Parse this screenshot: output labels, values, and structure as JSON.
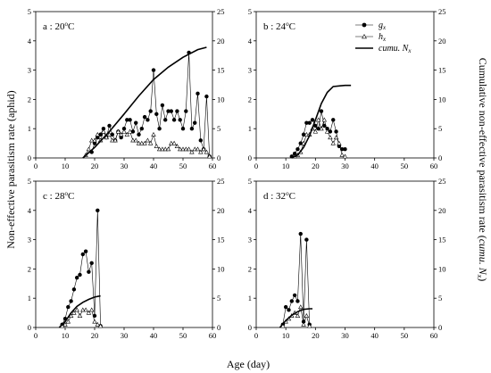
{
  "figure": {
    "xlabel": "Age (day)",
    "ylabel_left": "Non-effective parasitism rate (aphid)",
    "ylabel_right_prefix": "Cumulative non-effective parasitism rate (",
    "ylabel_right_italic": "cumu. N",
    "ylabel_right_sub": "x",
    "ylabel_right_suffix": ")",
    "legend": [
      {
        "key": "gx",
        "base": "g",
        "sub": "x",
        "marker": "filled-circle"
      },
      {
        "key": "hx",
        "base": "h",
        "sub": "x",
        "marker": "open-triangle"
      },
      {
        "key": "cumu",
        "base": "cumu. N",
        "sub": "x",
        "marker": "thick-line"
      }
    ],
    "colors": {
      "line": "#000000",
      "background": "#ffffff"
    }
  },
  "chart_data": [
    {
      "type": "line",
      "panel": "a",
      "label_prefix": "a : 20",
      "label_sup": "o",
      "label_suffix": "C",
      "xlim": [
        0,
        60
      ],
      "ylim_left": [
        0,
        5
      ],
      "ylim_right": [
        0,
        25
      ],
      "xticks": [
        0,
        10,
        20,
        30,
        40,
        50,
        60
      ],
      "yticks_left": [
        0,
        1,
        2,
        3,
        4,
        5
      ],
      "yticks_right": [
        0,
        5,
        10,
        15,
        20,
        25
      ],
      "series": [
        {
          "name": "gx",
          "axis": "left",
          "x": [
            19,
            20,
            21,
            22,
            23,
            24,
            25,
            26,
            27,
            28,
            29,
            30,
            31,
            32,
            33,
            34,
            35,
            36,
            37,
            38,
            39,
            40,
            41,
            42,
            43,
            44,
            45,
            46,
            47,
            48,
            49,
            50,
            51,
            52,
            53,
            54,
            55,
            56,
            57,
            58,
            59
          ],
          "y": [
            0.2,
            0.5,
            0.7,
            0.8,
            1.0,
            0.7,
            1.1,
            0.8,
            0.6,
            0.9,
            0.7,
            1.0,
            1.3,
            1.3,
            0.9,
            1.2,
            0.8,
            1.0,
            1.4,
            1.3,
            1.6,
            3.0,
            1.5,
            1.0,
            1.8,
            1.3,
            1.6,
            1.6,
            1.3,
            1.6,
            1.3,
            1.0,
            1.6,
            3.6,
            1.0,
            1.2,
            2.2,
            0.6,
            0.3,
            2.1,
            0.05
          ]
        },
        {
          "name": "hx",
          "axis": "left",
          "x": [
            17,
            18,
            19,
            20,
            21,
            22,
            23,
            24,
            25,
            26,
            27,
            28,
            29,
            30,
            31,
            32,
            33,
            34,
            35,
            36,
            37,
            38,
            39,
            40,
            41,
            42,
            43,
            44,
            45,
            46,
            47,
            48,
            49,
            50,
            51,
            52,
            53,
            54,
            55,
            56,
            57,
            58,
            59
          ],
          "y": [
            0.1,
            0.3,
            0.6,
            0.6,
            0.8,
            0.6,
            0.9,
            0.7,
            0.8,
            0.6,
            0.6,
            0.9,
            0.8,
            0.9,
            0.8,
            0.9,
            0.6,
            0.6,
            0.5,
            0.5,
            0.5,
            0.6,
            0.5,
            0.8,
            0.4,
            0.3,
            0.3,
            0.3,
            0.3,
            0.5,
            0.5,
            0.4,
            0.3,
            0.3,
            0.3,
            0.3,
            0.2,
            0.3,
            0.3,
            0.2,
            0.3,
            0.2,
            0.05
          ]
        },
        {
          "name": "cumu. Nx",
          "axis": "right",
          "x": [
            16,
            20,
            25,
            30,
            35,
            40,
            45,
            50,
            55,
            58
          ],
          "y": [
            0,
            1.8,
            4.5,
            7.5,
            10.6,
            13.4,
            15.5,
            17.2,
            18.5,
            18.9
          ]
        }
      ]
    },
    {
      "type": "line",
      "panel": "b",
      "label_prefix": "b : 24",
      "label_sup": "o",
      "label_suffix": "C",
      "xlim": [
        0,
        60
      ],
      "ylim_left": [
        0,
        5
      ],
      "ylim_right": [
        0,
        25
      ],
      "xticks": [
        0,
        10,
        20,
        30,
        40,
        50,
        60
      ],
      "yticks_left": [
        0,
        1,
        2,
        3,
        4,
        5
      ],
      "yticks_right": [
        0,
        5,
        10,
        15,
        20,
        25
      ],
      "series": [
        {
          "name": "gx",
          "axis": "left",
          "x": [
            12,
            13,
            14,
            15,
            16,
            17,
            18,
            19,
            20,
            21,
            22,
            23,
            24,
            25,
            26,
            27,
            28,
            29,
            30
          ],
          "y": [
            0.05,
            0.15,
            0.3,
            0.5,
            0.8,
            1.2,
            1.2,
            1.3,
            1.1,
            1.0,
            1.6,
            1.1,
            1.0,
            0.9,
            1.3,
            0.9,
            0.4,
            0.3,
            0.3
          ]
        },
        {
          "name": "hx",
          "axis": "left",
          "x": [
            13,
            14,
            15,
            16,
            17,
            18,
            19,
            20,
            21,
            22,
            23,
            24,
            25,
            26,
            27,
            28,
            29,
            30
          ],
          "y": [
            0.05,
            0.1,
            0.2,
            0.5,
            0.8,
            0.8,
            1.0,
            0.9,
            1.3,
            1.0,
            1.3,
            0.9,
            0.7,
            0.5,
            0.7,
            0.5,
            0.1,
            0.05
          ]
        },
        {
          "name": "cumu. Nx",
          "axis": "right",
          "x": [
            12,
            14,
            16,
            18,
            20,
            22,
            24,
            26,
            28,
            30,
            32
          ],
          "y": [
            0,
            0.5,
            1.8,
            3.8,
            6.5,
            9.3,
            11.2,
            12.2,
            12.3,
            12.4,
            12.4
          ]
        }
      ]
    },
    {
      "type": "line",
      "panel": "c",
      "label_prefix": "c : 28",
      "label_sup": "o",
      "label_suffix": "C",
      "xlim": [
        0,
        60
      ],
      "ylim_left": [
        0,
        5
      ],
      "ylim_right": [
        0,
        25
      ],
      "xticks": [
        0,
        10,
        20,
        30,
        40,
        50,
        60
      ],
      "yticks_left": [
        0,
        1,
        2,
        3,
        4,
        5
      ],
      "yticks_right": [
        0,
        5,
        10,
        15,
        20,
        25
      ],
      "series": [
        {
          "name": "gx",
          "axis": "left",
          "x": [
            9,
            10,
            11,
            12,
            13,
            14,
            15,
            16,
            17,
            18,
            19,
            20,
            21,
            22
          ],
          "y": [
            0.1,
            0.3,
            0.7,
            0.9,
            1.3,
            1.7,
            1.8,
            2.5,
            2.6,
            1.9,
            2.2,
            0.4,
            4.0,
            0.05
          ]
        },
        {
          "name": "hx",
          "axis": "left",
          "x": [
            9,
            10,
            11,
            12,
            13,
            14,
            15,
            16,
            17,
            18,
            19,
            20,
            21,
            22
          ],
          "y": [
            0.05,
            0.1,
            0.2,
            0.4,
            0.5,
            0.6,
            0.4,
            0.6,
            0.6,
            0.5,
            0.6,
            0.2,
            0.1,
            0.05
          ]
        },
        {
          "name": "cumu. Nx",
          "axis": "right",
          "x": [
            8,
            10,
            12,
            14,
            16,
            18,
            20,
            22
          ],
          "y": [
            0,
            1.0,
            2.5,
            3.6,
            4.3,
            4.8,
            5.2,
            5.4
          ]
        }
      ]
    },
    {
      "type": "line",
      "panel": "d",
      "label_prefix": "d : 32",
      "label_sup": "o",
      "label_suffix": "C",
      "xlim": [
        0,
        60
      ],
      "ylim_left": [
        0,
        5
      ],
      "ylim_right": [
        0,
        25
      ],
      "xticks": [
        0,
        10,
        20,
        30,
        40,
        50,
        60
      ],
      "yticks_left": [
        0,
        1,
        2,
        3,
        4,
        5
      ],
      "yticks_right": [
        0,
        5,
        10,
        15,
        20,
        25
      ],
      "series": [
        {
          "name": "gx",
          "axis": "left",
          "x": [
            9,
            10,
            11,
            12,
            13,
            14,
            15,
            16,
            17,
            18
          ],
          "y": [
            0.1,
            0.7,
            0.6,
            0.9,
            1.1,
            0.9,
            3.2,
            0.2,
            3.0,
            0.1
          ]
        },
        {
          "name": "hx",
          "axis": "left",
          "x": [
            9,
            10,
            11,
            12,
            13,
            14,
            15,
            16,
            17,
            18
          ],
          "y": [
            0.05,
            0.2,
            0.3,
            0.4,
            0.5,
            0.4,
            0.7,
            0.1,
            0.4,
            0.05
          ]
        },
        {
          "name": "cumu. Nx",
          "axis": "right",
          "x": [
            8,
            10,
            12,
            14,
            16,
            18,
            19
          ],
          "y": [
            0,
            1.2,
            2.1,
            2.7,
            3.1,
            3.2,
            3.2
          ]
        }
      ]
    }
  ]
}
